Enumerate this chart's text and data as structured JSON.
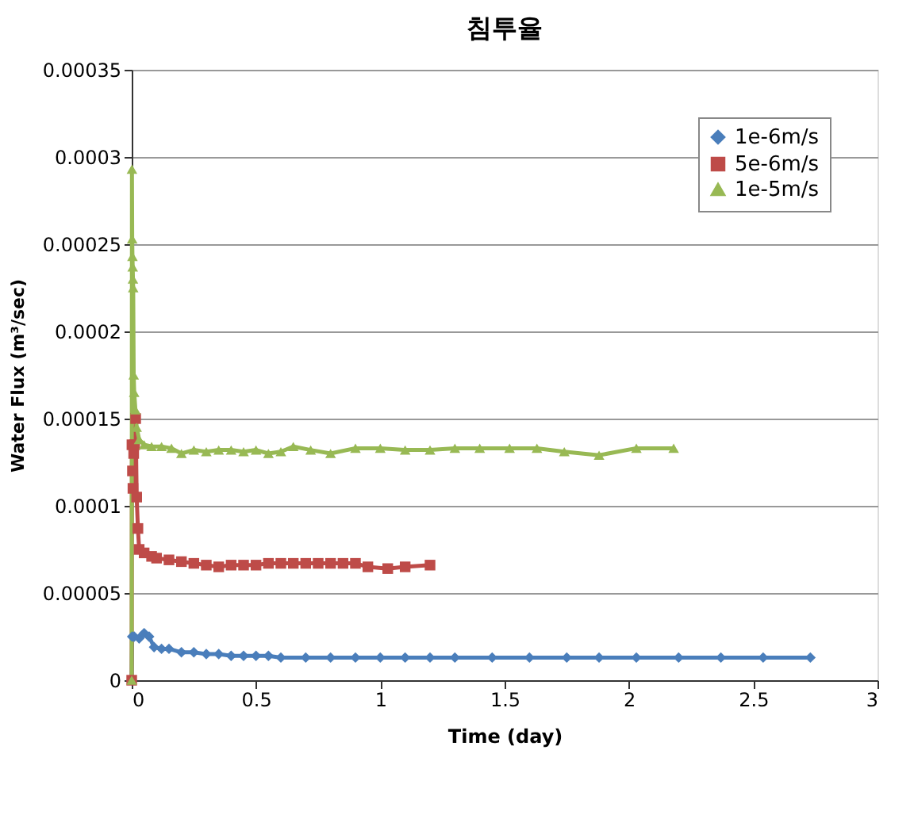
{
  "chart_data": {
    "type": "line",
    "title": "침투율",
    "xlabel": "Time (day)",
    "ylabel": "Water Flux (m³/sec)",
    "xlim": [
      0,
      3
    ],
    "xticks": [
      0,
      0.5,
      1,
      1.5,
      2,
      2.5,
      3
    ],
    "ylim": [
      0,
      0.00035
    ],
    "yticks": [
      0,
      {
        "value": 5e-05,
        "label": "0.00005"
      },
      0.0001,
      0.00015,
      0.0002,
      0.00025,
      0.0003,
      0.00035
    ],
    "grid": "y",
    "legend": "top right",
    "series": [
      {
        "name": "1e-6m/s",
        "color": "#4a7ebb",
        "marker": "diamond",
        "x": [
          0,
          0.002,
          0.01,
          0.03,
          0.05,
          0.07,
          0.09,
          0.12,
          0.15,
          0.2,
          0.25,
          0.3,
          0.35,
          0.4,
          0.45,
          0.5,
          0.55,
          0.6,
          0.7,
          0.8,
          0.9,
          1.0,
          1.1,
          1.2,
          1.3,
          1.45,
          1.6,
          1.75,
          1.88,
          2.03,
          2.2,
          2.37,
          2.54,
          2.73
        ],
        "values": [
          0,
          2.5e-05,
          2.5e-05,
          2.4e-05,
          2.7e-05,
          2.5e-05,
          1.9e-05,
          1.8e-05,
          1.8e-05,
          1.6e-05,
          1.6e-05,
          1.5e-05,
          1.5e-05,
          1.4e-05,
          1.4e-05,
          1.4e-05,
          1.4e-05,
          1.3e-05,
          1.3e-05,
          1.3e-05,
          1.3e-05,
          1.3e-05,
          1.3e-05,
          1.3e-05,
          1.3e-05,
          1.3e-05,
          1.3e-05,
          1.3e-05,
          1.3e-05,
          1.3e-05,
          1.3e-05,
          1.3e-05,
          1.3e-05,
          1.3e-05
        ]
      },
      {
        "name": "5e-6m/s",
        "color": "#be4b48",
        "marker": "square",
        "x": [
          0,
          0.001,
          0.003,
          0.005,
          0.008,
          0.012,
          0.016,
          0.02,
          0.025,
          0.03,
          0.05,
          0.08,
          0.1,
          0.15,
          0.2,
          0.25,
          0.3,
          0.35,
          0.4,
          0.45,
          0.5,
          0.55,
          0.6,
          0.65,
          0.7,
          0.75,
          0.8,
          0.85,
          0.9,
          0.95,
          1.03,
          1.1,
          1.2
        ],
        "values": [
          0,
          0.000135,
          0.00012,
          0.00011,
          0.00013,
          0.000135,
          0.00015,
          0.000105,
          8.7e-05,
          7.5e-05,
          7.3e-05,
          7.1e-05,
          7e-05,
          6.9e-05,
          6.8e-05,
          6.7e-05,
          6.6e-05,
          6.5e-05,
          6.6e-05,
          6.6e-05,
          6.6e-05,
          6.7e-05,
          6.7e-05,
          6.7e-05,
          6.7e-05,
          6.7e-05,
          6.7e-05,
          6.7e-05,
          6.7e-05,
          6.5e-05,
          6.4e-05,
          6.5e-05,
          6.6e-05
        ]
      },
      {
        "name": "1e-5m/s",
        "color": "#98b954",
        "marker": "triangle",
        "x": [
          0,
          0.001,
          0.002,
          0.003,
          0.004,
          0.005,
          0.006,
          0.008,
          0.01,
          0.015,
          0.02,
          0.03,
          0.05,
          0.08,
          0.12,
          0.16,
          0.2,
          0.25,
          0.3,
          0.35,
          0.4,
          0.45,
          0.5,
          0.55,
          0.6,
          0.65,
          0.72,
          0.8,
          0.9,
          1.0,
          1.1,
          1.2,
          1.3,
          1.4,
          1.52,
          1.63,
          1.74,
          1.88,
          2.03,
          2.18
        ],
        "values": [
          0,
          0.000293,
          0.000253,
          0.000243,
          0.000237,
          0.00023,
          0.000225,
          0.000175,
          0.000165,
          0.000155,
          0.000145,
          0.000138,
          0.000135,
          0.000134,
          0.000134,
          0.000133,
          0.00013,
          0.000132,
          0.000131,
          0.000132,
          0.000132,
          0.000131,
          0.000132,
          0.00013,
          0.000131,
          0.000134,
          0.000132,
          0.00013,
          0.000133,
          0.000133,
          0.000132,
          0.000132,
          0.000133,
          0.000133,
          0.000133,
          0.000133,
          0.000131,
          0.000129,
          0.000133,
          0.000133
        ]
      }
    ]
  }
}
